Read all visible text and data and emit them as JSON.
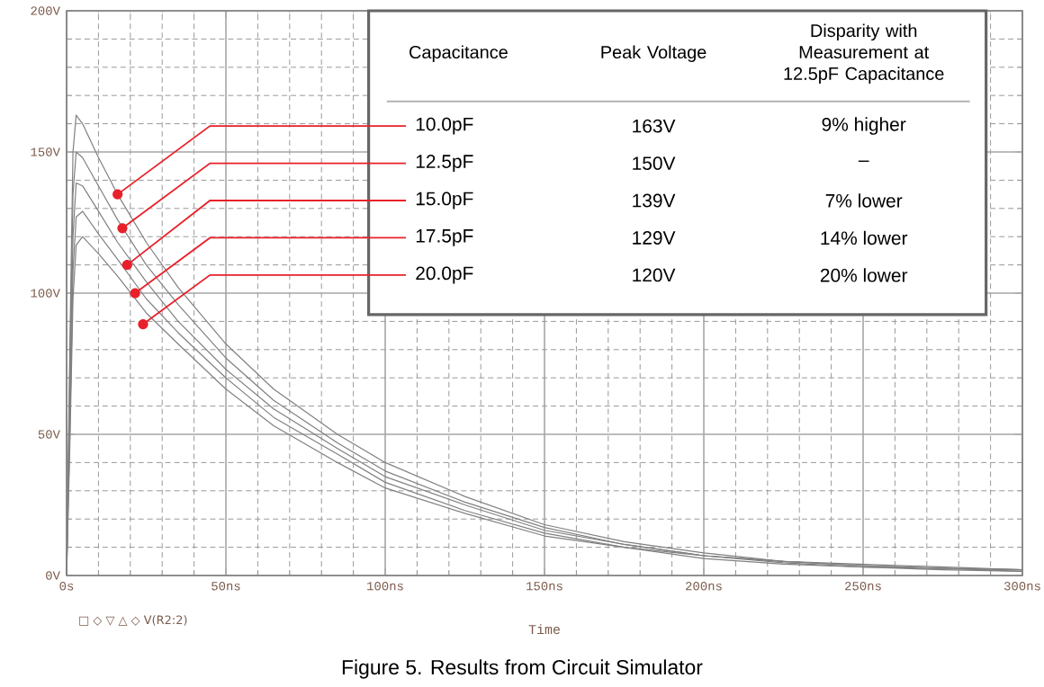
{
  "chart_data": {
    "type": "line",
    "xlabel": "Time",
    "x": [
      0,
      1,
      2,
      3,
      5,
      10,
      16,
      25,
      35,
      50,
      65,
      85,
      100,
      125,
      150,
      175,
      200,
      225,
      250,
      275,
      300
    ],
    "series": [
      {
        "color": "#808080",
        "values": [
          0,
          80,
          150,
          163,
          160,
          148,
          135,
          118,
          102,
          82,
          66,
          50,
          40,
          28,
          18,
          12,
          8,
          5,
          4,
          3,
          2
        ]
      },
      {
        "color": "#808080",
        "values": [
          0,
          70,
          135,
          150,
          148,
          138,
          126,
          110,
          96,
          77,
          62,
          47,
          37,
          26,
          17,
          11,
          7,
          5,
          3.5,
          2.5,
          2
        ]
      },
      {
        "color": "#808080",
        "values": [
          0,
          60,
          120,
          139,
          138,
          129,
          118,
          104,
          90,
          73,
          59,
          45,
          35,
          25,
          16,
          11,
          7,
          5,
          3.5,
          2.5,
          2
        ]
      },
      {
        "color": "#808080",
        "values": [
          0,
          50,
          108,
          127,
          129,
          121,
          112,
          98,
          86,
          70,
          56,
          43,
          33,
          23,
          15,
          10,
          7,
          4.5,
          3,
          2.5,
          1.5
        ]
      },
      {
        "color": "#808080",
        "values": [
          0,
          45,
          98,
          117,
          120,
          114,
          106,
          93,
          82,
          66,
          53,
          40,
          31,
          22,
          14,
          10,
          6,
          4,
          3,
          2,
          1.5
        ]
      }
    ],
    "xlim": [
      0,
      300
    ],
    "ylim": [
      0,
      200
    ],
    "xticks": [
      {
        "value": 0,
        "label": "0s"
      },
      {
        "value": 50,
        "label": "50ns"
      },
      {
        "value": 100,
        "label": "100ns"
      },
      {
        "value": 150,
        "label": "150ns"
      },
      {
        "value": 200,
        "label": "200ns"
      },
      {
        "value": 250,
        "label": "250ns"
      },
      {
        "value": 300,
        "label": "300ns"
      }
    ],
    "yticks": [
      {
        "value": 0,
        "label": "0V"
      },
      {
        "value": 50,
        "label": "50V"
      },
      {
        "value": 100,
        "label": "100V"
      },
      {
        "value": 150,
        "label": "150V"
      },
      {
        "value": 200,
        "label": "200V"
      }
    ],
    "grid": true,
    "marker": "none",
    "annotations": [
      "Capacitance",
      "Peak Voltage",
      "Disparity with Measurement at 12.5pF Capacitance",
      {
        "text": "10.0pF",
        "x": 16,
        "y": 135
      },
      {
        "text": "12.5pF",
        "x": 17.5,
        "y": 123
      },
      {
        "text": "15.0pF",
        "x": 19,
        "y": 110
      },
      {
        "text": "17.5pF",
        "x": 21.5,
        "y": 100
      },
      {
        "text": "20.0pF",
        "x": 24,
        "y": 89
      },
      "163V",
      "150V",
      "139V",
      "129V",
      "120V",
      "9% higher",
      "–",
      "7% lower",
      "14% lower",
      "20% lower",
      "□ ◇ ▽ △ ◇ V(R2:2)",
      "Figure 5. Results from Circuit Simulator"
    ]
  }
}
